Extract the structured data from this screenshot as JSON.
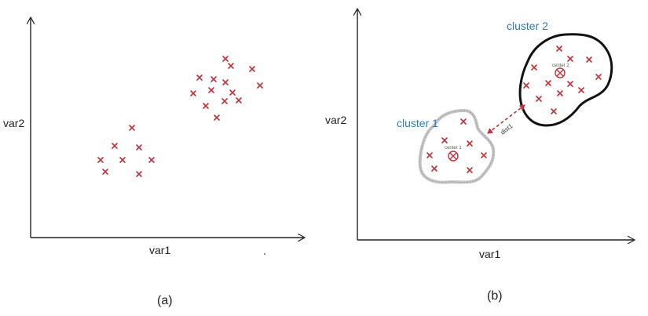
{
  "panel_a": {
    "xlabel": "var1",
    "ylabel": "var2",
    "caption": "(a)",
    "point_color": "#c0323a"
  },
  "panel_b": {
    "xlabel": "var1",
    "ylabel": "var2",
    "caption": "(b)",
    "cluster1": {
      "label": "cluster 1",
      "center_label": "center 1",
      "outline_color": "#b8b8b8"
    },
    "cluster2": {
      "label": "cluster 2",
      "center_label": "center 2",
      "outline_color": "#111111"
    },
    "distance_label": "dist1",
    "label_color": "#2f7bb5",
    "point_color": "#c0323a"
  },
  "icons": {
    "point": "x-mark-icon",
    "center": "circled-x-icon",
    "distance": "double-arrow-icon"
  }
}
